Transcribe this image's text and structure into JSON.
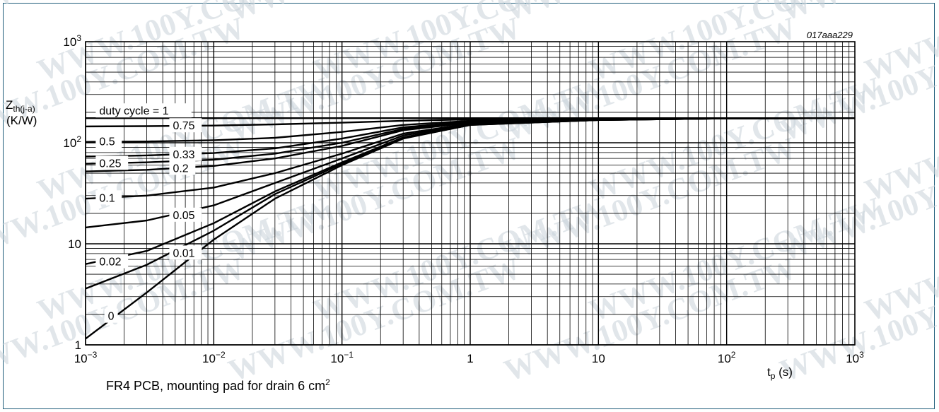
{
  "figure": {
    "id_label": "017aaa229",
    "y_label_main": "Z",
    "y_label_sub": "th(j-a)",
    "y_label_unit": "(K/W)",
    "x_label_main": "t",
    "x_label_sub": "p",
    "x_label_unit": " (s)",
    "caption_text": "FR4 PCB, mounting pad for drain 6 cm",
    "caption_sup": "2",
    "watermark": "WWW.100Y.COM.TW"
  },
  "chart_data": {
    "type": "line",
    "title": "",
    "xlabel": "tp (s)",
    "ylabel": "Zth(j-a) (K/W)",
    "xscale": "log",
    "yscale": "log",
    "xlim": [
      0.001,
      1000
    ],
    "ylim": [
      1,
      1000
    ],
    "grid": true,
    "x_ticks": [
      {
        "value": 0.001,
        "base": "10",
        "exp": "−3"
      },
      {
        "value": 0.01,
        "base": "10",
        "exp": "−2"
      },
      {
        "value": 0.1,
        "base": "10",
        "exp": "−1"
      },
      {
        "value": 1,
        "base": "1",
        "exp": ""
      },
      {
        "value": 10,
        "base": "10",
        "exp": ""
      },
      {
        "value": 100,
        "base": "10",
        "exp": "2"
      },
      {
        "value": 1000,
        "base": "10",
        "exp": "3"
      }
    ],
    "y_ticks": [
      {
        "value": 1,
        "base": "1",
        "exp": ""
      },
      {
        "value": 10,
        "base": "10",
        "exp": ""
      },
      {
        "value": 100,
        "base": "10",
        "exp": "2"
      },
      {
        "value": 1000,
        "base": "10",
        "exp": "3"
      }
    ],
    "series": [
      {
        "name": "duty cycle = 1",
        "x": [
          0.001,
          1000
        ],
        "y": [
          175,
          175
        ]
      },
      {
        "name": "0.75",
        "x": [
          0.001,
          0.003,
          0.01,
          0.03,
          0.1,
          0.3,
          1,
          10,
          100,
          1000
        ],
        "y": [
          145,
          146,
          148,
          152,
          158,
          165,
          170,
          173,
          174,
          175
        ]
      },
      {
        "name": "0.5",
        "x": [
          0.001,
          0.003,
          0.01,
          0.03,
          0.1,
          0.3,
          1,
          10,
          100,
          1000
        ],
        "y": [
          102,
          103,
          106,
          112,
          128,
          150,
          165,
          172,
          174,
          175
        ]
      },
      {
        "name": "0.33",
        "x": [
          0.001,
          0.003,
          0.01,
          0.03,
          0.1,
          0.3,
          1,
          10,
          100,
          1000
        ],
        "y": [
          73,
          75,
          79,
          88,
          110,
          142,
          162,
          171,
          174,
          175
        ]
      },
      {
        "name": "0.25",
        "x": [
          0.001,
          0.003,
          0.01,
          0.03,
          0.1,
          0.3,
          1,
          10,
          100,
          1000
        ],
        "y": [
          62,
          64,
          68,
          78,
          100,
          137,
          160,
          170,
          174,
          175
        ]
      },
      {
        "name": "0.2",
        "x": [
          0.001,
          0.003,
          0.01,
          0.03,
          0.1,
          0.3,
          1,
          10,
          100,
          1000
        ],
        "y": [
          52,
          54,
          59,
          70,
          93,
          133,
          158,
          170,
          174,
          175
        ]
      },
      {
        "name": "0.1",
        "x": [
          0.001,
          0.003,
          0.01,
          0.03,
          0.1,
          0.3,
          1,
          10,
          100,
          1000
        ],
        "y": [
          28,
          30,
          36,
          50,
          78,
          123,
          155,
          169,
          174,
          175
        ]
      },
      {
        "name": "0.05",
        "x": [
          0.001,
          0.003,
          0.01,
          0.03,
          0.1,
          0.3,
          1,
          10,
          100,
          1000
        ],
        "y": [
          14.5,
          17,
          24,
          40,
          70,
          118,
          153,
          168,
          174,
          175
        ]
      },
      {
        "name": "0.02",
        "x": [
          0.001,
          0.003,
          0.01,
          0.03,
          0.1,
          0.3,
          1,
          10,
          100,
          1000
        ],
        "y": [
          6.3,
          8.5,
          16,
          33,
          64,
          113,
          151,
          168,
          174,
          175
        ]
      },
      {
        "name": "0.01",
        "x": [
          0.001,
          0.003,
          0.01,
          0.03,
          0.1,
          0.3,
          1,
          10,
          100,
          1000
        ],
        "y": [
          3.6,
          6.2,
          13.5,
          31,
          62,
          111,
          150,
          168,
          174,
          175
        ]
      },
      {
        "name": "0",
        "x": [
          0.001,
          0.003,
          0.01,
          0.03,
          0.1,
          0.3,
          1,
          10,
          100,
          1000
        ],
        "y": [
          1.15,
          3.3,
          11,
          28,
          60,
          110,
          150,
          168,
          174,
          175
        ]
      }
    ]
  }
}
